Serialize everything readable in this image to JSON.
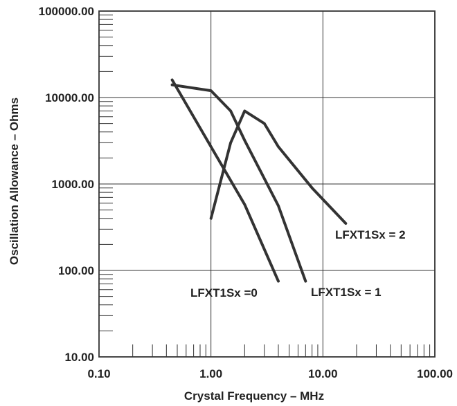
{
  "chart_data": {
    "type": "line",
    "title": "",
    "xlabel": "Crystal Frequency – MHz",
    "ylabel": "Oscillation Allowance – Ohms",
    "x_scale": "log",
    "y_scale": "log",
    "xlim": [
      0.1,
      100
    ],
    "ylim": [
      10,
      100000
    ],
    "x_tick_labels": [
      "0.10",
      "1.00",
      "10.00",
      "100.00"
    ],
    "x_tick_values": [
      0.1,
      1,
      10,
      100
    ],
    "y_tick_labels": [
      "10.00",
      "100.00",
      "1000.00",
      "10000.00",
      "100000.00"
    ],
    "y_tick_values": [
      10,
      100,
      1000,
      10000,
      100000
    ],
    "grid": true,
    "series": [
      {
        "name": "LFXT1Sx =0",
        "points": [
          [
            0.45,
            16000
          ],
          [
            1.0,
            2700
          ],
          [
            2.0,
            580
          ],
          [
            4.0,
            75
          ]
        ]
      },
      {
        "name": "LFXT1Sx = 1",
        "points": [
          [
            0.45,
            14000
          ],
          [
            1.0,
            12000
          ],
          [
            1.5,
            7000
          ],
          [
            2.0,
            3200
          ],
          [
            4.0,
            560
          ],
          [
            7.0,
            75
          ]
        ]
      },
      {
        "name": "LFXT1Sx = 2",
        "points": [
          [
            1.0,
            400
          ],
          [
            1.5,
            3000
          ],
          [
            2.0,
            7000
          ],
          [
            3.0,
            5000
          ],
          [
            4.0,
            2700
          ],
          [
            8.0,
            900
          ],
          [
            16.0,
            350
          ]
        ]
      }
    ],
    "colors": {
      "line": "#333333",
      "grid": "#333333",
      "text": "#222222"
    }
  }
}
